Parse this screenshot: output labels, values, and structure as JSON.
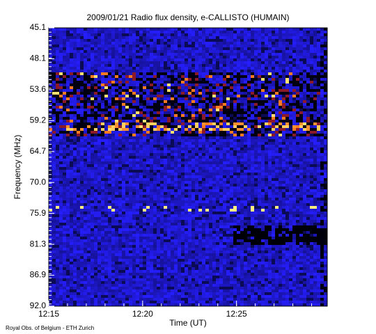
{
  "chart_data": {
    "type": "spectrogram",
    "title": "2009/01/21  Radio flux density, e-CALLISTO (HUMAIN)",
    "x_label": "Time (UT)",
    "y_label": "Frequency (MHz)",
    "y_labels": [
      "45.1",
      "48.1",
      "53.6",
      "59.2",
      "64.7",
      "70.0",
      "75.9",
      "81.3",
      "86.9",
      "92.0"
    ],
    "xlim": [
      "12:15",
      "12:29:50"
    ],
    "xticks": [
      "12:15",
      "12:20",
      "12:25"
    ],
    "credit": "Royal Obs. of Belgium - ETH Zurich"
  }
}
